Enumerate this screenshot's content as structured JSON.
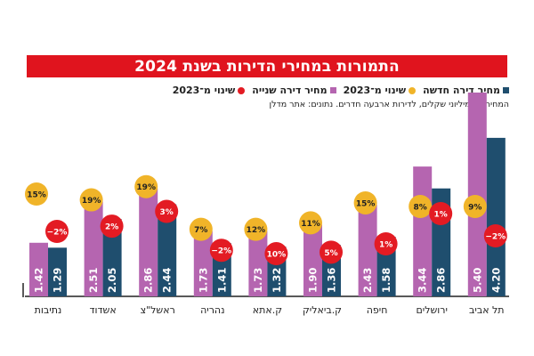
{
  "chart_data": {
    "type": "bar",
    "title": "התמורות במחירי הדירות בשנת 2024",
    "subtitle": "המחירים במיליוני שקלים, לדירות ארבעה חדרים. נתונים: אתר מדלן",
    "xlabel": "",
    "ylabel": "",
    "ylim": [
      0,
      5.4
    ],
    "grid": false,
    "legend_position": "top-right",
    "legend": [
      {
        "label": "מחיר דירה חדשה",
        "marker": "square",
        "color": "#1f4e6e"
      },
      {
        "label": "שינוי מ־2023",
        "marker": "circle",
        "color": "#f0b429"
      },
      {
        "label": "מחיר דירה שנייה",
        "marker": "square",
        "color": "#b565b0"
      },
      {
        "label": "שינוי מ־2023",
        "marker": "circle",
        "color": "#e31b23"
      }
    ],
    "categories": [
      "נתיבות",
      "אשדוד",
      "ראשל\"צ",
      "נהריה",
      "ק.אתא",
      "ק.ביאליק",
      "חיפה",
      "ירושלים",
      "תל אביב"
    ],
    "series": [
      {
        "name": "מחיר דירה שנייה",
        "color": "#b565b0",
        "values": [
          1.42,
          2.51,
          2.86,
          1.73,
          1.73,
          1.9,
          2.43,
          3.44,
          5.4
        ],
        "labels": [
          "1.42",
          "2.51",
          "2.86",
          "1.73",
          "1.73",
          "1.90",
          "2.43",
          "3.44",
          "5.40"
        ]
      },
      {
        "name": "מחיר דירה חדשה",
        "color": "#1f4e6e",
        "values": [
          1.29,
          2.05,
          2.44,
          1.41,
          1.32,
          1.36,
          1.58,
          2.86,
          4.2
        ],
        "labels": [
          "1.29",
          "2.05",
          "2.44",
          "1.41",
          "1.32",
          "1.36",
          "1.58",
          "2.86",
          "4.20"
        ]
      }
    ],
    "changes": [
      {
        "name": "שינוי מ־2023 (דירה שנייה)",
        "color": "#f0b429",
        "text_color": "#222222",
        "labels": [
          "15%",
          "19%",
          "19%",
          "7%",
          "12%",
          "11%",
          "15%",
          "8%",
          "9%"
        ]
      },
      {
        "name": "שינוי מ־2023 (דירה חדשה)",
        "color": "#e31b23",
        "text_color": "#ffffff",
        "labels": [
          "−2%",
          "2%",
          "3%",
          "−2%",
          "10%",
          "5%",
          "1%",
          "1%",
          "−2%"
        ]
      }
    ]
  },
  "colors": {
    "title_bg": "#e0141e",
    "title_fg": "#ffffff",
    "axis": "#222222"
  }
}
